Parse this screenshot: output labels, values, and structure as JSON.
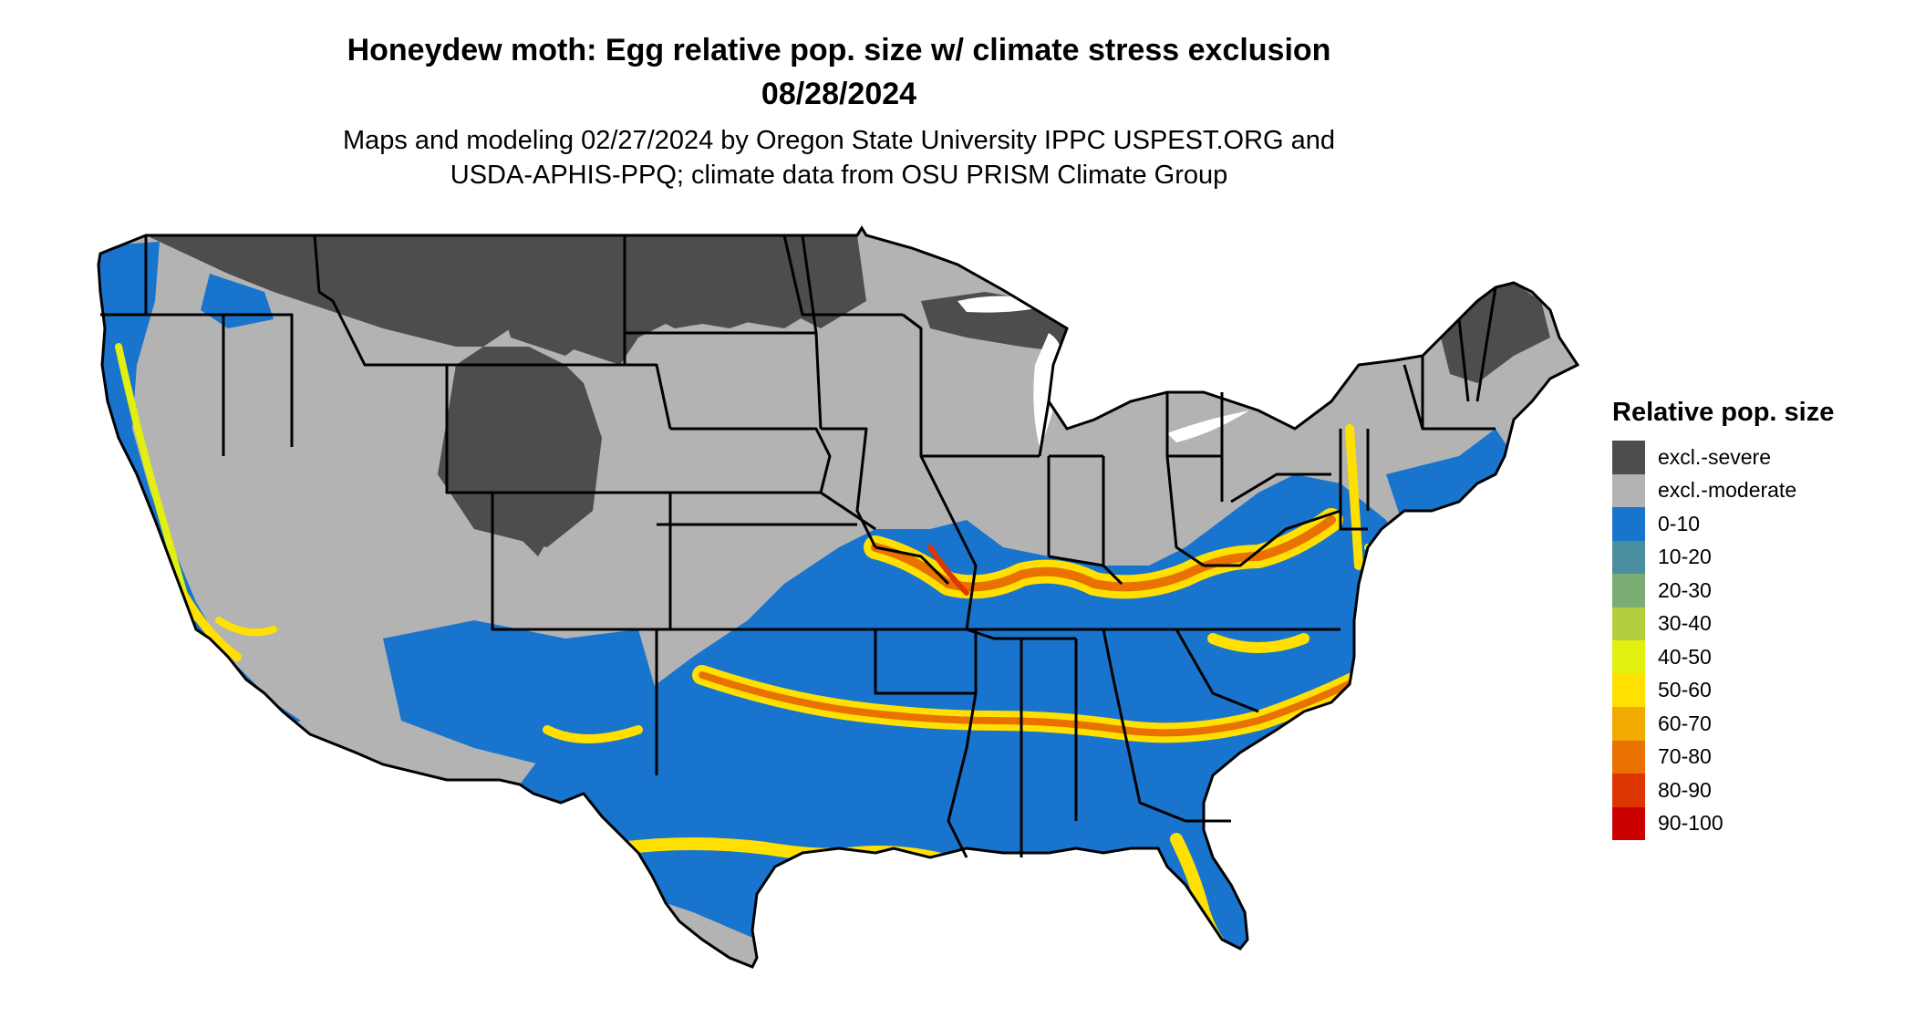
{
  "title": {
    "line1": "Honeydew moth: Egg relative pop. size w/ climate stress exclusion",
    "line2": "08/28/2024"
  },
  "subtitle": {
    "line1": "Maps and modeling 02/27/2024 by Oregon State University IPPC USPEST.ORG and",
    "line2": "USDA-APHIS-PPQ; climate data from OSU PRISM Climate Group"
  },
  "legend": {
    "title": "Relative pop. size",
    "items": [
      {
        "label": "excl.-severe",
        "color": "#4d4d4d"
      },
      {
        "label": "excl.-moderate",
        "color": "#b3b3b3"
      },
      {
        "label": "0-10",
        "color": "#1874cd"
      },
      {
        "label": "10-20",
        "color": "#4a8fa0"
      },
      {
        "label": "20-30",
        "color": "#7aad72"
      },
      {
        "label": "30-40",
        "color": "#b2cf3e"
      },
      {
        "label": "40-50",
        "color": "#e1f00f"
      },
      {
        "label": "50-60",
        "color": "#ffe000"
      },
      {
        "label": "60-70",
        "color": "#f2a900"
      },
      {
        "label": "70-80",
        "color": "#e87100"
      },
      {
        "label": "80-90",
        "color": "#dd3600"
      },
      {
        "label": "90-100",
        "color": "#cd0000"
      }
    ]
  }
}
